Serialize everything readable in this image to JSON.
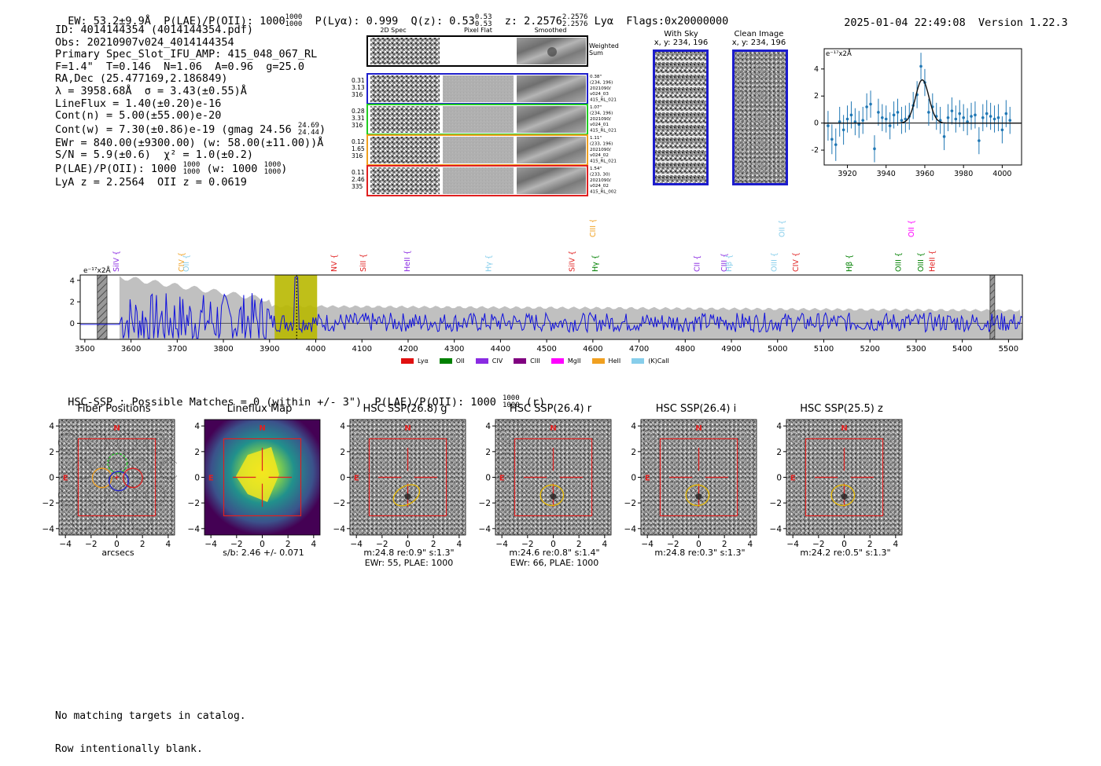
{
  "header": {
    "ew": "EW: 53.2±9.9Å",
    "plae_label": "P(LAE)/P(OII): 1000",
    "plae_sup": "1000",
    "plae_sub": "1000",
    "plya": "P(Lyα): 0.999",
    "q_label": "Q(z): 0.53",
    "q_sup": "0.53",
    "q_sub": "0.53",
    "z_label": "z: 2.2576",
    "z_sup": "2.2576",
    "z_sub": "2.2576",
    "z_line": "Lyα",
    "flags": "Flags:0x20000000",
    "datetime": "2025-01-04 22:49:08",
    "version": "Version 1.22.3"
  },
  "info": {
    "id": "ID: 4014144354 (4014144354.pdf)",
    "obs": "Obs: 20210907v024_4014144354",
    "primary": "Primary Spec_Slot_IFU_AMP: 415_048_067_RL",
    "params": "F=1.4\"  T=0.146  N=1.06  A=0.96  g=25.0",
    "radec": "RA,Dec (25.477169,2.186849)",
    "lambda": "λ = 3958.68Å  σ = 3.43(±0.55)Å",
    "lineflux": "LineFlux = 1.40(±0.20)e-16",
    "contn": "Cont(n) = 5.00(±55.00)e-20",
    "contw": "Cont(w) = 7.30(±0.86)e-19 (gmag 24.56",
    "contw_sup": "24.69",
    "contw_sub": "24.44",
    "contw_end": ")",
    "ewr": "EWr = 840.00(±9300.00) (w: 58.00(±11.00))Å",
    "sn": "S/N = 5.9(±0.6)  χ² = 1.0(±0.2)",
    "plae": "P(LAE)/P(OII): 1000",
    "plae_sup": "1000",
    "plae_sub": "1000",
    "plae_w": "(w: 1000",
    "plae_w_sup": "1000",
    "plae_w_sub": "1000",
    "plae_w_end": ")",
    "lyaz": "LyA z = 2.2564  OII z = 0.0619"
  },
  "spec2d": {
    "col_headers": [
      "2D Spec",
      "Pixel Flat",
      "Smoothed"
    ],
    "weighted_sum": "Weighted\nSum",
    "rows": [
      {
        "left": [
          "0.31",
          "3.13",
          "316"
        ],
        "right": [
          "0.38\"",
          "(234, 196)",
          "2021090/",
          "v024_03",
          "415_RL_021"
        ],
        "color": "#1f1fcc"
      },
      {
        "left": [
          "0.28",
          "3.31",
          "316"
        ],
        "right": [
          "1.07\"",
          "(234, 196)",
          "2021090/",
          "v024_01",
          "415_RL_021"
        ],
        "color": "#22cc22"
      },
      {
        "left": [
          "0.12",
          "1.65",
          "316"
        ],
        "right": [
          "1.11\"",
          "(233, 196)",
          "2021090/",
          "v024_02",
          "415_RL_021"
        ],
        "color": "#f0a020"
      },
      {
        "left": [
          "0.11",
          "2.46",
          "335"
        ],
        "right": [
          "1.54\"",
          "(233, 30)",
          "2021090/",
          "v024_02",
          "415_RL_002"
        ],
        "color": "#e02020"
      }
    ]
  },
  "sky": {
    "with_sky_title": "With Sky",
    "with_sky_xy": "x, y: 234, 196",
    "clean_title": "Clean Image",
    "clean_xy": "x, y: 234, 196"
  },
  "zoom_chart": {
    "type": "scatter",
    "ylabel": "e⁻¹⁷x2Å",
    "xlim": [
      3908,
      4010
    ],
    "ylim": [
      -3.1,
      5.5
    ],
    "xticks": [
      3920,
      3940,
      3960,
      3980,
      4000
    ],
    "yticks": [
      -2,
      0,
      2,
      4
    ],
    "fit": {
      "center": 3958.68,
      "sigma": 3.43,
      "amp": 3.2
    },
    "x": [
      3910,
      3912,
      3914,
      3916,
      3918,
      3920,
      3922,
      3924,
      3926,
      3928,
      3930,
      3932,
      3934,
      3936,
      3938,
      3940,
      3942,
      3944,
      3946,
      3948,
      3950,
      3952,
      3954,
      3956,
      3958,
      3960,
      3962,
      3964,
      3966,
      3968,
      3970,
      3972,
      3974,
      3976,
      3978,
      3980,
      3982,
      3984,
      3986,
      3988,
      3990,
      3992,
      3994,
      3996,
      3998,
      4000,
      4002,
      4004
    ],
    "y": [
      -0.2,
      -1.2,
      -1.6,
      0.1,
      -0.5,
      0.3,
      0.6,
      0.1,
      -0.1,
      0.2,
      1.2,
      1.4,
      -1.9,
      0.8,
      0.4,
      0.3,
      -0.2,
      0.6,
      0.8,
      0.2,
      0.3,
      0.5,
      1.3,
      2.1,
      4.2,
      3.0,
      0.8,
      1.2,
      0.5,
      0.2,
      -1.0,
      0.4,
      0.9,
      0.3,
      0.7,
      0.4,
      0.1,
      0.5,
      0.6,
      -1.3,
      0.4,
      0.7,
      0.5,
      0.3,
      0.4,
      -0.5,
      0.7,
      0.2
    ],
    "err": [
      1.1,
      1.1,
      1.2,
      1.1,
      1.1,
      1.0,
      1.0,
      1.0,
      1.0,
      1.0,
      1.0,
      1.0,
      1.0,
      1.0,
      1.0,
      1.0,
      1.0,
      1.0,
      1.0,
      1.0,
      1.0,
      1.0,
      1.0,
      1.0,
      1.0,
      1.0,
      1.0,
      1.0,
      1.0,
      1.0,
      1.0,
      1.0,
      1.0,
      1.0,
      1.0,
      1.0,
      1.0,
      1.0,
      1.0,
      1.0,
      1.0,
      1.0,
      1.0,
      1.0,
      1.0,
      1.0,
      1.0,
      1.0
    ]
  },
  "full_spectrum": {
    "type": "line",
    "ylabel": "e⁻¹⁷x2Å",
    "xlim": [
      3490,
      5530
    ],
    "ylim": [
      -1.5,
      4.5
    ],
    "xticks": [
      3500,
      3600,
      3700,
      3800,
      3900,
      4000,
      4100,
      4200,
      4300,
      4400,
      4500,
      4600,
      4700,
      4800,
      4900,
      5000,
      5100,
      5200,
      5300,
      5400,
      5500
    ],
    "yticks": [
      0,
      2,
      4
    ],
    "hatch_regions": [
      [
        3527,
        3548
      ],
      [
        5460,
        5470
      ]
    ],
    "highlight_region": [
      3911,
      4003
    ],
    "peak_wavelength": 3958.68,
    "lines": [
      {
        "name": "SiIV",
        "x": 3568,
        "color": "#8a2be2",
        "row": 0
      },
      {
        "name": "CIV",
        "x": 3710,
        "color": "#f0a020",
        "row": 0
      },
      {
        "name": "OII",
        "x": 3720,
        "color": "#87ceeb",
        "row": 0
      },
      {
        "name": "NV",
        "x": 4040,
        "color": "#e02020",
        "row": 0
      },
      {
        "name": "SiII",
        "x": 4103,
        "color": "#e02020",
        "row": 0
      },
      {
        "name": "HeII",
        "x": 4198,
        "color": "#8a2be2",
        "row": 0
      },
      {
        "name": "Hγ",
        "x": 4375,
        "color": "#87ceeb",
        "row": 0
      },
      {
        "name": "SiIV",
        "x": 4555,
        "color": "#e02020",
        "row": 0
      },
      {
        "name": "CIII",
        "x": 4600,
        "color": "#f0a020",
        "row": 1
      },
      {
        "name": "Hγ",
        "x": 4605,
        "color": "#008000",
        "row": 0
      },
      {
        "name": "CII",
        "x": 4826,
        "color": "#8a2be2",
        "row": 0
      },
      {
        "name": "CIII",
        "x": 4885,
        "color": "#8a2be2",
        "row": 0
      },
      {
        "name": "Hβ",
        "x": 4895,
        "color": "#87ceeb",
        "row": 0
      },
      {
        "name": "OIII",
        "x": 4993,
        "color": "#87ceeb",
        "row": 0
      },
      {
        "name": "OII",
        "x": 5010,
        "color": "#87ceeb",
        "row": 1
      },
      {
        "name": "CIV",
        "x": 5040,
        "color": "#e02020",
        "row": 0
      },
      {
        "name": "Hβ",
        "x": 5155,
        "color": "#008000",
        "row": 0
      },
      {
        "name": "OIII",
        "x": 5262,
        "color": "#008000",
        "row": 0
      },
      {
        "name": "OII",
        "x": 5290,
        "color": "#ff00ff",
        "row": 1
      },
      {
        "name": "OIII",
        "x": 5310,
        "color": "#008000",
        "row": 0
      },
      {
        "name": "HeII",
        "x": 5335,
        "color": "#e02020",
        "row": 0
      }
    ],
    "legend": [
      {
        "label": "Lyα",
        "color": "#e01010"
      },
      {
        "label": "OII",
        "color": "#008000"
      },
      {
        "label": "CIV",
        "color": "#8a2be2"
      },
      {
        "label": "CIII",
        "color": "#800080"
      },
      {
        "label": "MgII",
        "color": "#ff00ff"
      },
      {
        "label": "HeII",
        "color": "#f0a020"
      },
      {
        "label": "(K)CaII",
        "color": "#87ceeb"
      }
    ]
  },
  "hsc": {
    "title": "HSC-SSP : Possible Matches = 0 (within +/- 3\")  P(LAE)/P(OII): 1000",
    "sup": "1000",
    "sub": "1000",
    "suffix": "(r)",
    "axis_ticks": [
      -4,
      -2,
      0,
      2,
      4
    ],
    "north": "N",
    "east": "E",
    "cutouts": [
      {
        "title": "Fiber Positions",
        "caption1": "arcsecs",
        "caption2": ""
      },
      {
        "title": "Lineflux Map",
        "caption1": "s/b: 2.46 +/- 0.071",
        "caption2": ""
      },
      {
        "title": "HSC SSP(26.8) g",
        "caption1": "m:24.8  re:0.9\"  s:1.3\"",
        "caption2": "EWr: 55, PLAE: 1000"
      },
      {
        "title": "HSC SSP(26.4) r",
        "caption1": "m:24.6  re:0.8\"  s:1.4\"",
        "caption2": "EWr: 66, PLAE: 1000"
      },
      {
        "title": "HSC SSP(26.4) i",
        "caption1": "m:24.8  re:0.3\"  s:1.3\"",
        "caption2": ""
      },
      {
        "title": "HSC SSP(25.5) z",
        "caption1": "m:24.2  re:0.5\"  s:1.3\"",
        "caption2": ""
      }
    ]
  },
  "footer": {
    "line1": "No matching targets in catalog.",
    "line2": "Row intentionally blank."
  }
}
